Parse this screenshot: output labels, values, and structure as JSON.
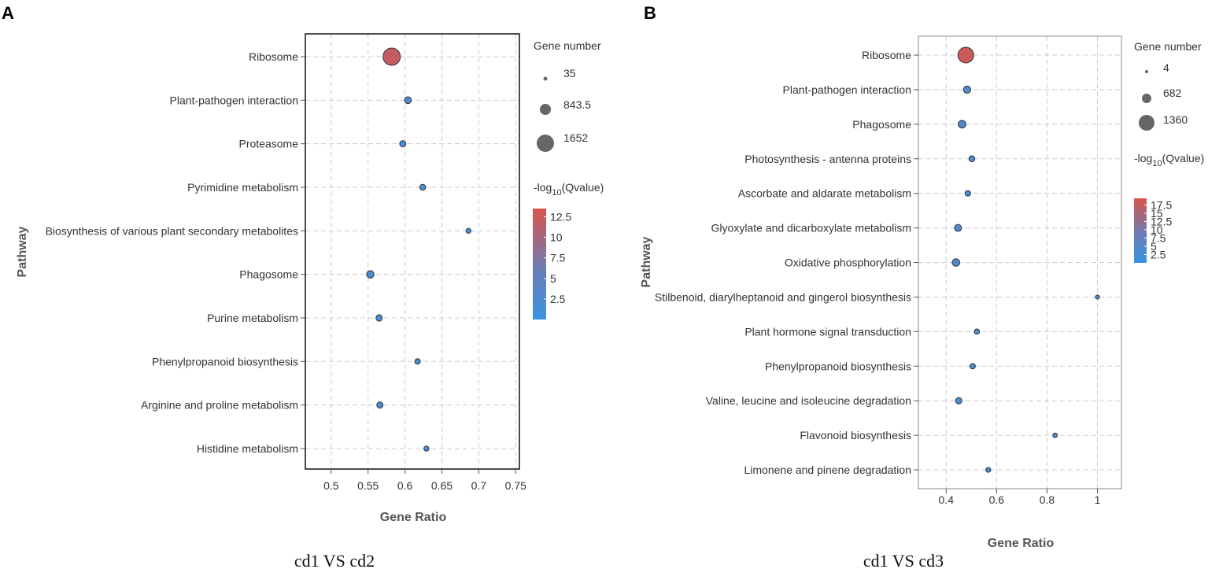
{
  "chart_data": [
    {
      "type": "scatter",
      "panel_label": "A",
      "caption": "cd1 VS cd2",
      "xlabel": "Gene Ratio",
      "ylabel": "Pathway",
      "xlim": [
        0.465,
        0.755
      ],
      "xticks": [
        0.5,
        0.55,
        0.6,
        0.65,
        0.7,
        0.75
      ],
      "xtick_labels": [
        "0.5",
        "0.55",
        "0.6",
        "0.65",
        "0.7",
        "0.75"
      ],
      "grid": true,
      "categories": [
        "Ribosome",
        "Plant-pathogen interaction",
        "Proteasome",
        "Pyrimidine metabolism",
        "Biosynthesis of various plant secondary metabolites",
        "Phagosome",
        "Purine metabolism",
        "Phenylpropanoid biosynthesis",
        "Arginine and proline metabolism",
        "Histidine metabolism"
      ],
      "gene_ratio": [
        0.582,
        0.604,
        0.597,
        0.624,
        0.686,
        0.553,
        0.565,
        0.617,
        0.566,
        0.629
      ],
      "gene_number": [
        1652,
        180,
        140,
        120,
        75,
        230,
        150,
        100,
        140,
        80
      ],
      "neg_log10_qvalue": [
        12.0,
        2.5,
        2.0,
        1.8,
        1.2,
        2.2,
        1.8,
        1.5,
        1.8,
        1.4
      ],
      "size_legend": {
        "title": "Gene number",
        "entries": [
          {
            "label": "35",
            "value": 35
          },
          {
            "label": "843.5",
            "value": 843.5
          },
          {
            "label": "1652",
            "value": 1652
          }
        ]
      },
      "color_legend": {
        "title_prefix": "-log",
        "title_sub": "10",
        "title_suffix": "(Qvalue)",
        "range": [
          0,
          13.5
        ],
        "ticks": [
          12.5,
          10,
          7.5,
          5,
          2.5
        ],
        "tick_labels": [
          "12.5",
          "10",
          "7.5",
          "5",
          "2.5"
        ],
        "low_color": "#3a93e0",
        "mid_color": "#6b7db5",
        "high_color": "#d9534a"
      }
    },
    {
      "type": "scatter",
      "panel_label": "B",
      "caption": "cd1 VS cd3",
      "xlabel": "Gene Ratio",
      "ylabel": "Pathway",
      "xlim": [
        0.29,
        1.095
      ],
      "xticks": [
        0.4,
        0.6,
        0.8,
        1.0
      ],
      "xtick_labels": [
        "0.4",
        "0.6",
        "0.8",
        "1"
      ],
      "grid": true,
      "categories": [
        "Ribosome",
        "Plant-pathogen interaction",
        "Phagosome",
        "Photosynthesis - antenna proteins",
        "Ascorbate and aldarate metabolism",
        "Glyoxylate and dicarboxylate metabolism",
        "Oxidative phosphorylation",
        "Stilbenoid, diarylheptanoid and gingerol biosynthesis",
        "Plant hormone signal transduction",
        "Phenylpropanoid biosynthesis",
        "Valine, leucine and isoleucine degradation",
        "Flavonoid biosynthesis",
        "Limonene and pinene degradation"
      ],
      "gene_ratio": [
        0.478,
        0.483,
        0.463,
        0.502,
        0.486,
        0.447,
        0.439,
        1.0,
        0.522,
        0.505,
        0.45,
        0.832,
        0.567
      ],
      "gene_number": [
        1360,
        180,
        210,
        90,
        80,
        160,
        200,
        20,
        60,
        70,
        120,
        35,
        45
      ],
      "neg_log10_qvalue": [
        18.0,
        4.5,
        4.5,
        3.0,
        2.8,
        3.5,
        4.0,
        1.5,
        2.0,
        2.2,
        3.0,
        1.8,
        1.6
      ],
      "size_legend": {
        "title": "Gene number",
        "entries": [
          {
            "label": "4",
            "value": 4
          },
          {
            "label": "682",
            "value": 682
          },
          {
            "label": "1360",
            "value": 1360
          }
        ]
      },
      "color_legend": {
        "title_prefix": "-log",
        "title_sub": "10",
        "title_suffix": "(Qvalue)",
        "range": [
          0,
          19.5
        ],
        "ticks": [
          17.5,
          15,
          12.5,
          10,
          7.5,
          5,
          2.5
        ],
        "tick_labels": [
          "17.5",
          "15",
          "12.5",
          "10",
          "7.5",
          "5",
          "2.5"
        ],
        "low_color": "#3a93e0",
        "mid_color": "#6b7db5",
        "high_color": "#d9534a"
      }
    }
  ]
}
